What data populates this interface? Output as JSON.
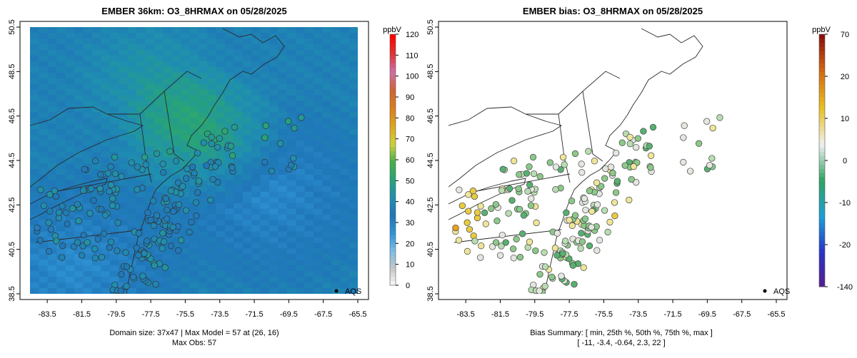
{
  "chart_data": [
    {
      "type": "heatmap",
      "title": "EMBER 36km: O3_8HRMAX on 05/28/2025",
      "units": "ppbV",
      "x_ticks": [
        "-83.5",
        "-81.5",
        "-79.5",
        "-77.5",
        "-75.5",
        "-73.5",
        "-71.5",
        "-69.5",
        "-67.5",
        "-65.5"
      ],
      "y_ticks": [
        "38.5",
        "40.5",
        "42.5",
        "44.5",
        "46.5",
        "48.5",
        "50.5"
      ],
      "xlim": [
        -84.5,
        -65.5
      ],
      "ylim": [
        38.5,
        50.5
      ],
      "colorbar_ticks": [
        "0",
        "10",
        "20",
        "30",
        "40",
        "50",
        "60",
        "70",
        "80",
        "90",
        "100",
        "110",
        "120"
      ],
      "colorbar_range": [
        0,
        120
      ],
      "legend_label": "AQS",
      "footer_line1": "Domain size: 37x47 | Max Model = 57 at (26, 16)",
      "footer_line2": "Max Obs: 57",
      "model_max": 57,
      "obs_max": 57,
      "grid_cols": 37,
      "grid_rows": 47
    },
    {
      "type": "scatter",
      "title": "EMBER bias: O3_8HRMAX on 05/28/2025",
      "units": "ppbV",
      "x_ticks": [
        "-83.5",
        "-81.5",
        "-79.5",
        "-77.5",
        "-75.5",
        "-73.5",
        "-71.5",
        "-69.5",
        "-67.5",
        "-65.5"
      ],
      "y_ticks": [
        "38.5",
        "40.5",
        "42.5",
        "44.5",
        "46.5",
        "48.5",
        "50.5"
      ],
      "xlim": [
        -84.5,
        -65.5
      ],
      "ylim": [
        38.5,
        50.5
      ],
      "colorbar_ticks": [
        "-140",
        "-20",
        "-10",
        "0",
        "10",
        "20",
        "70"
      ],
      "legend_label": "AQS",
      "footer_line1": "Bias Summary: [ min, 25th %, 50th %, 75th %, max ]",
      "footer_line2": "[ -11,   -3.4,   -0.64,   2.3,   22 ]",
      "bias_summary": {
        "min": -11,
        "p25": -3.4,
        "p50": -0.64,
        "p75": 2.3,
        "max": 22
      }
    }
  ],
  "colors": {
    "ozone_scale": [
      "#ffffff",
      "#c8c8c8",
      "#7dbde8",
      "#2f95d6",
      "#1f76b8",
      "#1f8fb0",
      "#27a37a",
      "#48b04a",
      "#cfd23a",
      "#dda520",
      "#d97e1c",
      "#d06432",
      "#cf70a8",
      "#e03535",
      "#ff0000"
    ],
    "bias_scale": [
      "#5a1e8a",
      "#2a31c8",
      "#1aa0d8",
      "#2fa262",
      "#f0f0f0",
      "#e8c020",
      "#d66a10",
      "#8b1010"
    ]
  }
}
